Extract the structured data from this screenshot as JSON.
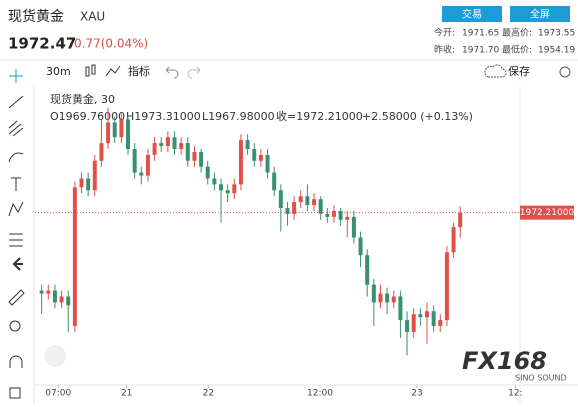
{
  "header": {
    "name": "现货黄金",
    "symbol": "XAU",
    "price": "1972.47",
    "change": "0.77(0.04%)",
    "buttons": [
      "交易",
      "全屏"
    ],
    "stats": [
      [
        "今开:",
        "1971.65",
        "最高价:",
        "1973.55"
      ],
      [
        "昨收:",
        "1971.70",
        "最低价:",
        "1954.19"
      ]
    ]
  },
  "toolbar": {
    "interval": "30m",
    "indicators": "指标",
    "save": "保存"
  },
  "legend": {
    "title": "现货黄金, 30",
    "open": "O1969.76000",
    "high": "H1973.31000",
    "low": "L1967.98000",
    "close": "收=1972.21000",
    "change": "+2.58000 (+0.13%)"
  },
  "watermark": {
    "logo": "FX168",
    "sub": "SINO SOUND"
  },
  "chart_data": {
    "type": "candlestick",
    "up_color": "#e0504a",
    "down_color": "#3a8f72",
    "open": [
      1959,
      1958.5,
      1959,
      1957,
      1958,
      1953,
      1976.5,
      1978,
      1976,
      1981,
      1984,
      1987.5,
      1985,
      1988,
      1983,
      1979,
      1978.5,
      1982,
      1984,
      1983.5,
      1985,
      1983,
      1984,
      1981,
      1982.5,
      1980,
      1978,
      1977,
      1976,
      1975.5,
      1977,
      1984.5,
      1983,
      1981,
      1982,
      1979,
      1976,
      1973,
      1972,
      1974,
      1975,
      1973.5,
      1974.5,
      1972,
      1971.5,
      1972.5,
      1971,
      1971.5,
      1968,
      1965,
      1960,
      1957,
      1958.5,
      1957,
      1958,
      1954,
      1952,
      1955,
      1954.5,
      1955.5,
      1953,
      1954,
      1965.5,
      1969.76
    ],
    "high": [
      1960,
      1960,
      1960,
      1959,
      1959,
      1977.5,
      1979,
      1979,
      1982,
      1988,
      1990,
      1988.5,
      1989,
      1988.5,
      1984,
      1980,
      1983,
      1985,
      1985,
      1986,
      1986,
      1985,
      1985,
      1983.5,
      1983,
      1981,
      1979,
      1978,
      1977,
      1978,
      1985.5,
      1985.5,
      1984,
      1983,
      1983,
      1980,
      1977,
      1974,
      1975,
      1976,
      1977,
      1975.5,
      1975,
      1973,
      1973.5,
      1973,
      1972.5,
      1972.5,
      1969,
      1966,
      1961,
      1960,
      1959.5,
      1959,
      1959,
      1955.5,
      1956,
      1956,
      1957,
      1956.5,
      1955,
      1966.5,
      1970.5,
      1973.31
    ],
    "low": [
      1955,
      1957.5,
      1956,
      1956,
      1952,
      1952,
      1975.5,
      1975,
      1975,
      1980,
      1983,
      1984,
      1984,
      1982,
      1978,
      1977,
      1977.5,
      1981,
      1982.5,
      1982.5,
      1982,
      1982,
      1980,
      1980,
      1979,
      1977,
      1976,
      1970.5,
      1974,
      1974.5,
      1976,
      1982,
      1980,
      1980,
      1978,
      1975,
      1969,
      1970,
      1971,
      1973,
      1972.5,
      1972.5,
      1971,
      1970.5,
      1970.5,
      1970,
      1968,
      1967,
      1963,
      1958,
      1953,
      1956,
      1955,
      1956,
      1951,
      1948,
      1951,
      1953,
      1950,
      1952,
      1952,
      1953,
      1964.5,
      1967.98
    ],
    "close": [
      1958.5,
      1959,
      1957,
      1958,
      1956.5,
      1976.5,
      1978,
      1976,
      1981,
      1984,
      1987.5,
      1985,
      1988,
      1983,
      1979,
      1978.5,
      1982,
      1984,
      1983.5,
      1985,
      1983,
      1984,
      1981,
      1982.5,
      1980,
      1978,
      1977,
      1976,
      1975.5,
      1977,
      1984.5,
      1983,
      1981,
      1982,
      1979,
      1976,
      1973,
      1972,
      1974,
      1975,
      1973.5,
      1974.5,
      1972,
      1971.5,
      1972.5,
      1971,
      1971.5,
      1968,
      1965,
      1960,
      1957,
      1958.5,
      1957,
      1958,
      1954,
      1952,
      1955,
      1954.5,
      1955.5,
      1953,
      1954,
      1965.5,
      1969.76,
      1972.21
    ],
    "xlim": [
      -1,
      72
    ],
    "ylim": [
      1943,
      1993
    ],
    "xticks": [
      {
        "value": 2.5,
        "label": "07:00"
      },
      {
        "value": 12.8,
        "label": "21"
      },
      {
        "value": 25.1,
        "label": "22"
      },
      {
        "value": 41.9,
        "label": "12:00"
      },
      {
        "value": 56.5,
        "label": "23"
      },
      {
        "value": 71.3,
        "label": "12:"
      }
    ],
    "last_price": {
      "value": 1972.21,
      "label": "1972.21000"
    }
  }
}
